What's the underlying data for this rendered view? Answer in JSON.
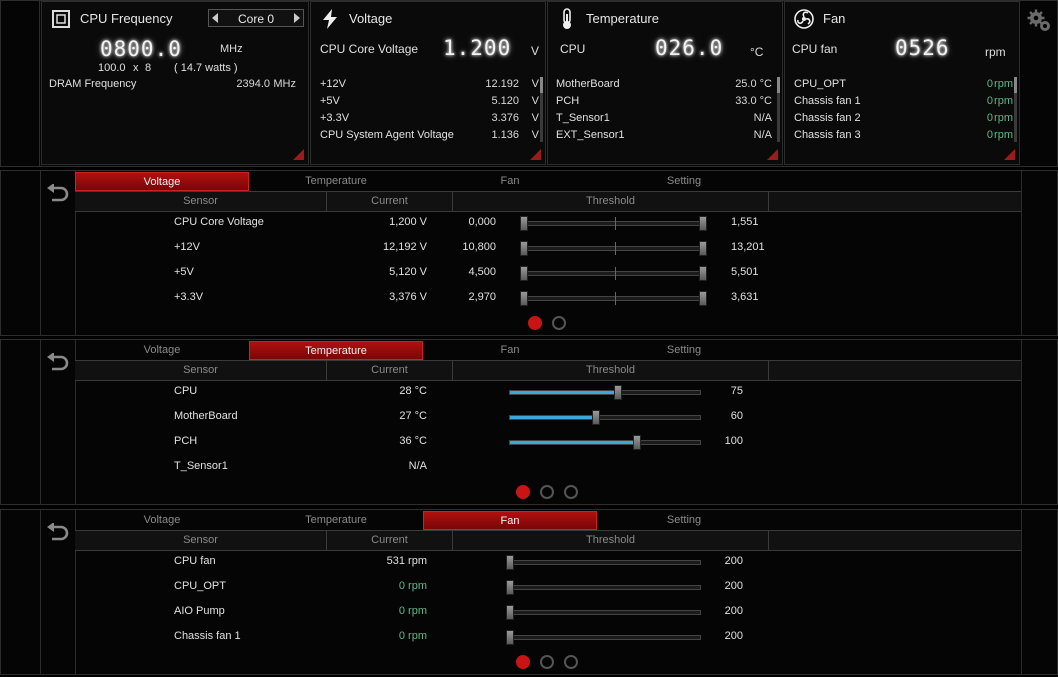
{
  "summary": {
    "cpu_freq": {
      "title": "CPU Frequency",
      "core_select": "Core 0",
      "value": "0800.0",
      "unit": "MHz",
      "ratio_base": "100.0",
      "ratio_x": "x",
      "ratio_mult": "8",
      "watts": "( 14.7 watts )",
      "dram_label": "DRAM Frequency",
      "dram_value": "2394.0",
      "dram_unit": "MHz"
    },
    "voltage": {
      "title": "Voltage",
      "main_label": "CPU Core Voltage",
      "main_value": "1.200",
      "main_unit": "V",
      "rows": [
        {
          "label": "+12V",
          "value": "12.192",
          "unit": "V"
        },
        {
          "label": "+5V",
          "value": "5.120",
          "unit": "V"
        },
        {
          "label": "+3.3V",
          "value": "3.376",
          "unit": "V"
        },
        {
          "label": "CPU System Agent Voltage",
          "value": "1.136",
          "unit": "V"
        }
      ]
    },
    "temperature": {
      "title": "Temperature",
      "main_label": "CPU",
      "main_value": "026.0",
      "main_unit": "°C",
      "rows": [
        {
          "label": "MotherBoard",
          "value": "25.0 °C"
        },
        {
          "label": "PCH",
          "value": "33.0 °C"
        },
        {
          "label": "T_Sensor1",
          "value": "N/A"
        },
        {
          "label": "EXT_Sensor1",
          "value": "N/A"
        }
      ]
    },
    "fan": {
      "title": "Fan",
      "main_label": "CPU fan",
      "main_value": "0526",
      "main_unit": "rpm",
      "rows": [
        {
          "label": "CPU_OPT",
          "value": "0",
          "unit": "rpm"
        },
        {
          "label": "Chassis fan 1",
          "value": "0",
          "unit": "rpm"
        },
        {
          "label": "Chassis fan 2",
          "value": "0",
          "unit": "rpm"
        },
        {
          "label": "Chassis fan 3",
          "value": "0",
          "unit": "rpm"
        }
      ]
    }
  },
  "tabs": [
    "Voltage",
    "Temperature",
    "Fan",
    "Setting"
  ],
  "columns": {
    "sensor": "Sensor",
    "current": "Current",
    "threshold": "Threshold"
  },
  "voltage_panel": {
    "active_tab": 0,
    "page": 1,
    "pages": 2,
    "rows": [
      {
        "sensor": "CPU Core Voltage",
        "current": "1,200 V",
        "low": "0,000",
        "high": "1,551"
      },
      {
        "sensor": "+12V",
        "current": "12,192 V",
        "low": "10,800",
        "high": "13,201"
      },
      {
        "sensor": "+5V",
        "current": "5,120 V",
        "low": "4,500",
        "high": "5,501"
      },
      {
        "sensor": "+3.3V",
        "current": "3,376 V",
        "low": "2,970",
        "high": "3,631"
      }
    ]
  },
  "temperature_panel": {
    "active_tab": 1,
    "page": 1,
    "pages": 3,
    "rows": [
      {
        "sensor": "CPU",
        "current": "28 °C",
        "threshold": "75",
        "level": 0.57
      },
      {
        "sensor": "MotherBoard",
        "current": "27 °C",
        "threshold": "60",
        "level": 0.45
      },
      {
        "sensor": "PCH",
        "current": "36 °C",
        "threshold": "100",
        "level": 0.67
      },
      {
        "sensor": "T_Sensor1",
        "current": "N/A",
        "threshold": "",
        "level": null
      }
    ]
  },
  "fan_panel": {
    "active_tab": 2,
    "page": 1,
    "pages": 3,
    "rows": [
      {
        "sensor": "CPU fan",
        "current": "531 rpm",
        "threshold": "200",
        "level": 0,
        "green": false
      },
      {
        "sensor": "CPU_OPT",
        "current": "0 rpm",
        "threshold": "200",
        "level": 0,
        "green": true
      },
      {
        "sensor": "AIO Pump",
        "current": "0 rpm",
        "threshold": "200",
        "level": 0,
        "green": true
      },
      {
        "sensor": "Chassis fan 1",
        "current": "0 rpm",
        "threshold": "200",
        "level": 0,
        "green": true
      }
    ]
  },
  "colors": {
    "accent": "#b10f0f",
    "slider_fill": "#39a9d6",
    "fan_zero": "#5fb88a"
  }
}
